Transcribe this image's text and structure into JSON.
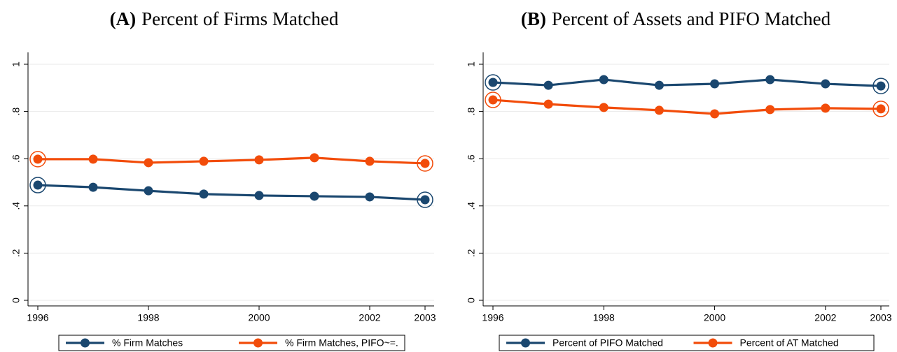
{
  "chart_data": [
    {
      "type": "line",
      "panel": "(A)",
      "title": "Percent of Firms Matched",
      "x": [
        1996,
        1997,
        1998,
        1999,
        2000,
        2001,
        2002,
        2003
      ],
      "xlim": [
        1996,
        2003
      ],
      "xticks": [
        1996,
        1998,
        2000,
        2002,
        2003
      ],
      "ylim": [
        0,
        1
      ],
      "yticks": [
        0,
        {
          "value": 0.2,
          "label": ".2"
        },
        {
          "value": 0.4,
          "label": ".4"
        },
        {
          "value": 0.6,
          "label": ".6"
        },
        {
          "value": 0.8,
          "label": ".8"
        },
        1
      ],
      "grid": true,
      "series": [
        {
          "name": "% Firm Matches",
          "color": "#1a476f",
          "values": [
            0.488,
            0.479,
            0.464,
            0.45,
            0.444,
            0.441,
            0.438,
            0.426
          ]
        },
        {
          "name": "% Firm Matches, PIFO~=.",
          "color": "#f24c0a",
          "values": [
            0.598,
            0.598,
            0.583,
            0.589,
            0.595,
            0.604,
            0.589,
            0.58
          ]
        }
      ]
    },
    {
      "type": "line",
      "panel": "(B)",
      "title": "Percent of Assets and PIFO Matched",
      "x": [
        1996,
        1997,
        1998,
        1999,
        2000,
        2001,
        2002,
        2003
      ],
      "xlim": [
        1996,
        2003
      ],
      "xticks": [
        1996,
        1998,
        2000,
        2002,
        2003
      ],
      "ylim": [
        0,
        1
      ],
      "yticks": [
        0,
        {
          "value": 0.2,
          "label": ".2"
        },
        {
          "value": 0.4,
          "label": ".4"
        },
        {
          "value": 0.6,
          "label": ".6"
        },
        {
          "value": 0.8,
          "label": ".8"
        },
        1
      ],
      "grid": true,
      "series": [
        {
          "name": "Percent of PIFO Matched",
          "color": "#1a476f",
          "values": [
            0.923,
            0.911,
            0.935,
            0.911,
            0.917,
            0.935,
            0.917,
            0.908
          ]
        },
        {
          "name": "Percent of AT Matched",
          "color": "#f24c0a",
          "values": [
            0.849,
            0.831,
            0.817,
            0.805,
            0.79,
            0.808,
            0.814,
            0.811
          ]
        }
      ]
    }
  ]
}
